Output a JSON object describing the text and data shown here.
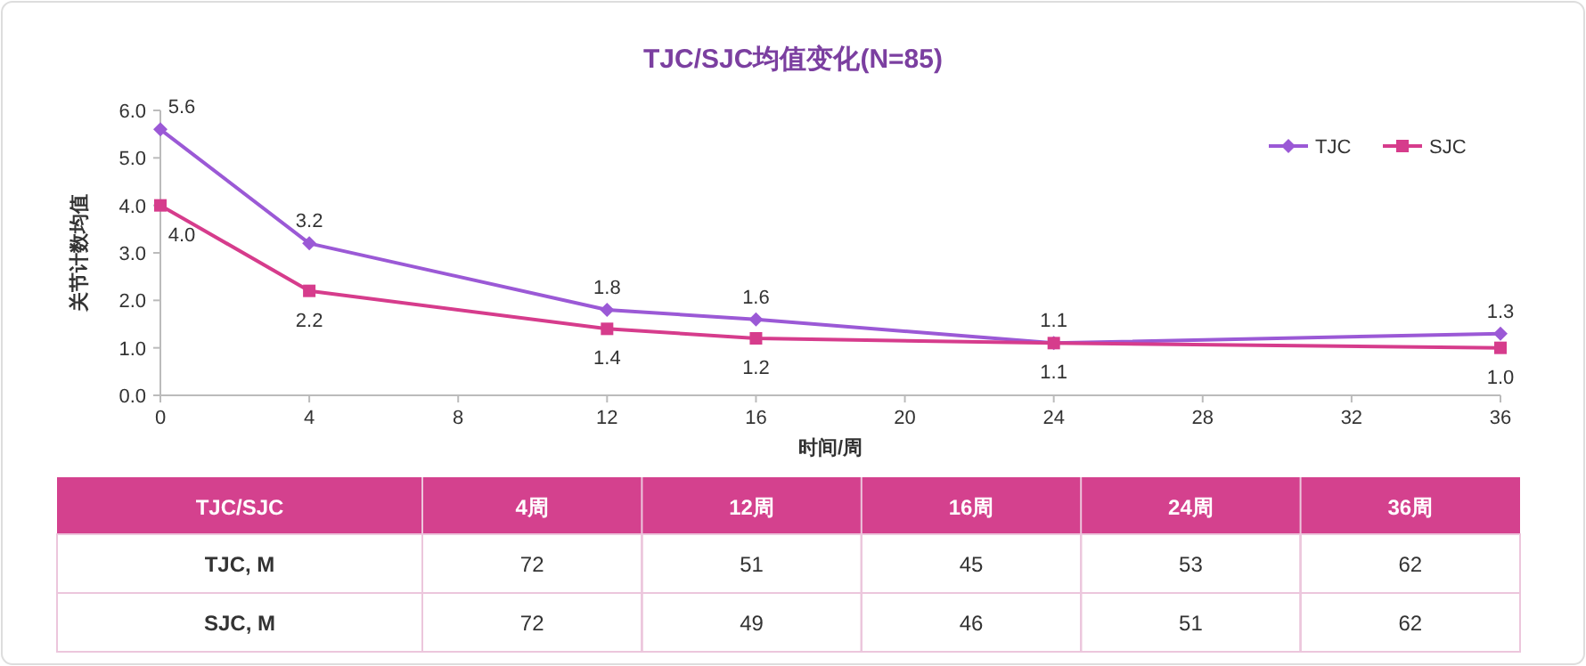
{
  "chart_data": [
    {
      "type": "line",
      "title": "TJC/SJC均值变化(N=85)",
      "xlabel": "时间/周",
      "ylabel": "关节计数均值",
      "x": [
        0,
        4,
        12,
        16,
        24,
        36
      ],
      "series": [
        {
          "name": "TJC",
          "color": "#9b59d6",
          "marker": "diamond",
          "values": [
            5.6,
            3.2,
            1.8,
            1.6,
            1.1,
            1.3
          ],
          "value_labels": [
            "5.6",
            "3.2",
            "1.8",
            "1.6",
            "1.1",
            "1.3"
          ]
        },
        {
          "name": "SJC",
          "color": "#d63c8c",
          "marker": "square",
          "values": [
            4.0,
            2.2,
            1.4,
            1.2,
            1.1,
            1.0
          ],
          "value_labels": [
            "4.0",
            "2.2",
            "1.4",
            "1.2",
            "1.1",
            "1.0"
          ]
        }
      ],
      "xlim": [
        0,
        36
      ],
      "xticks": [
        0,
        4,
        8,
        12,
        16,
        20,
        24,
        28,
        32,
        36
      ],
      "ylim": [
        0,
        6
      ],
      "yticks": [
        {
          "value": 0,
          "label": "0.0"
        },
        {
          "value": 1,
          "label": "1.0"
        },
        {
          "value": 2,
          "label": "2.0"
        },
        {
          "value": 3,
          "label": "3.0"
        },
        {
          "value": 4,
          "label": "4.0"
        },
        {
          "value": 5,
          "label": "5.0"
        },
        {
          "value": 6,
          "label": "6.0"
        }
      ],
      "grid": false,
      "legend": "top right"
    },
    {
      "type": "heatmap",
      "title": "TJC/SJC",
      "color": "#d4418e",
      "categories": [
        "4周",
        "12周",
        "16周",
        "24周",
        "36周"
      ],
      "y_categories": [
        "TJC, M",
        "SJC, M"
      ],
      "cells": [
        [
          72,
          51,
          45,
          53,
          62
        ],
        [
          72,
          49,
          46,
          51,
          62
        ]
      ],
      "data_labels": true
    }
  ]
}
